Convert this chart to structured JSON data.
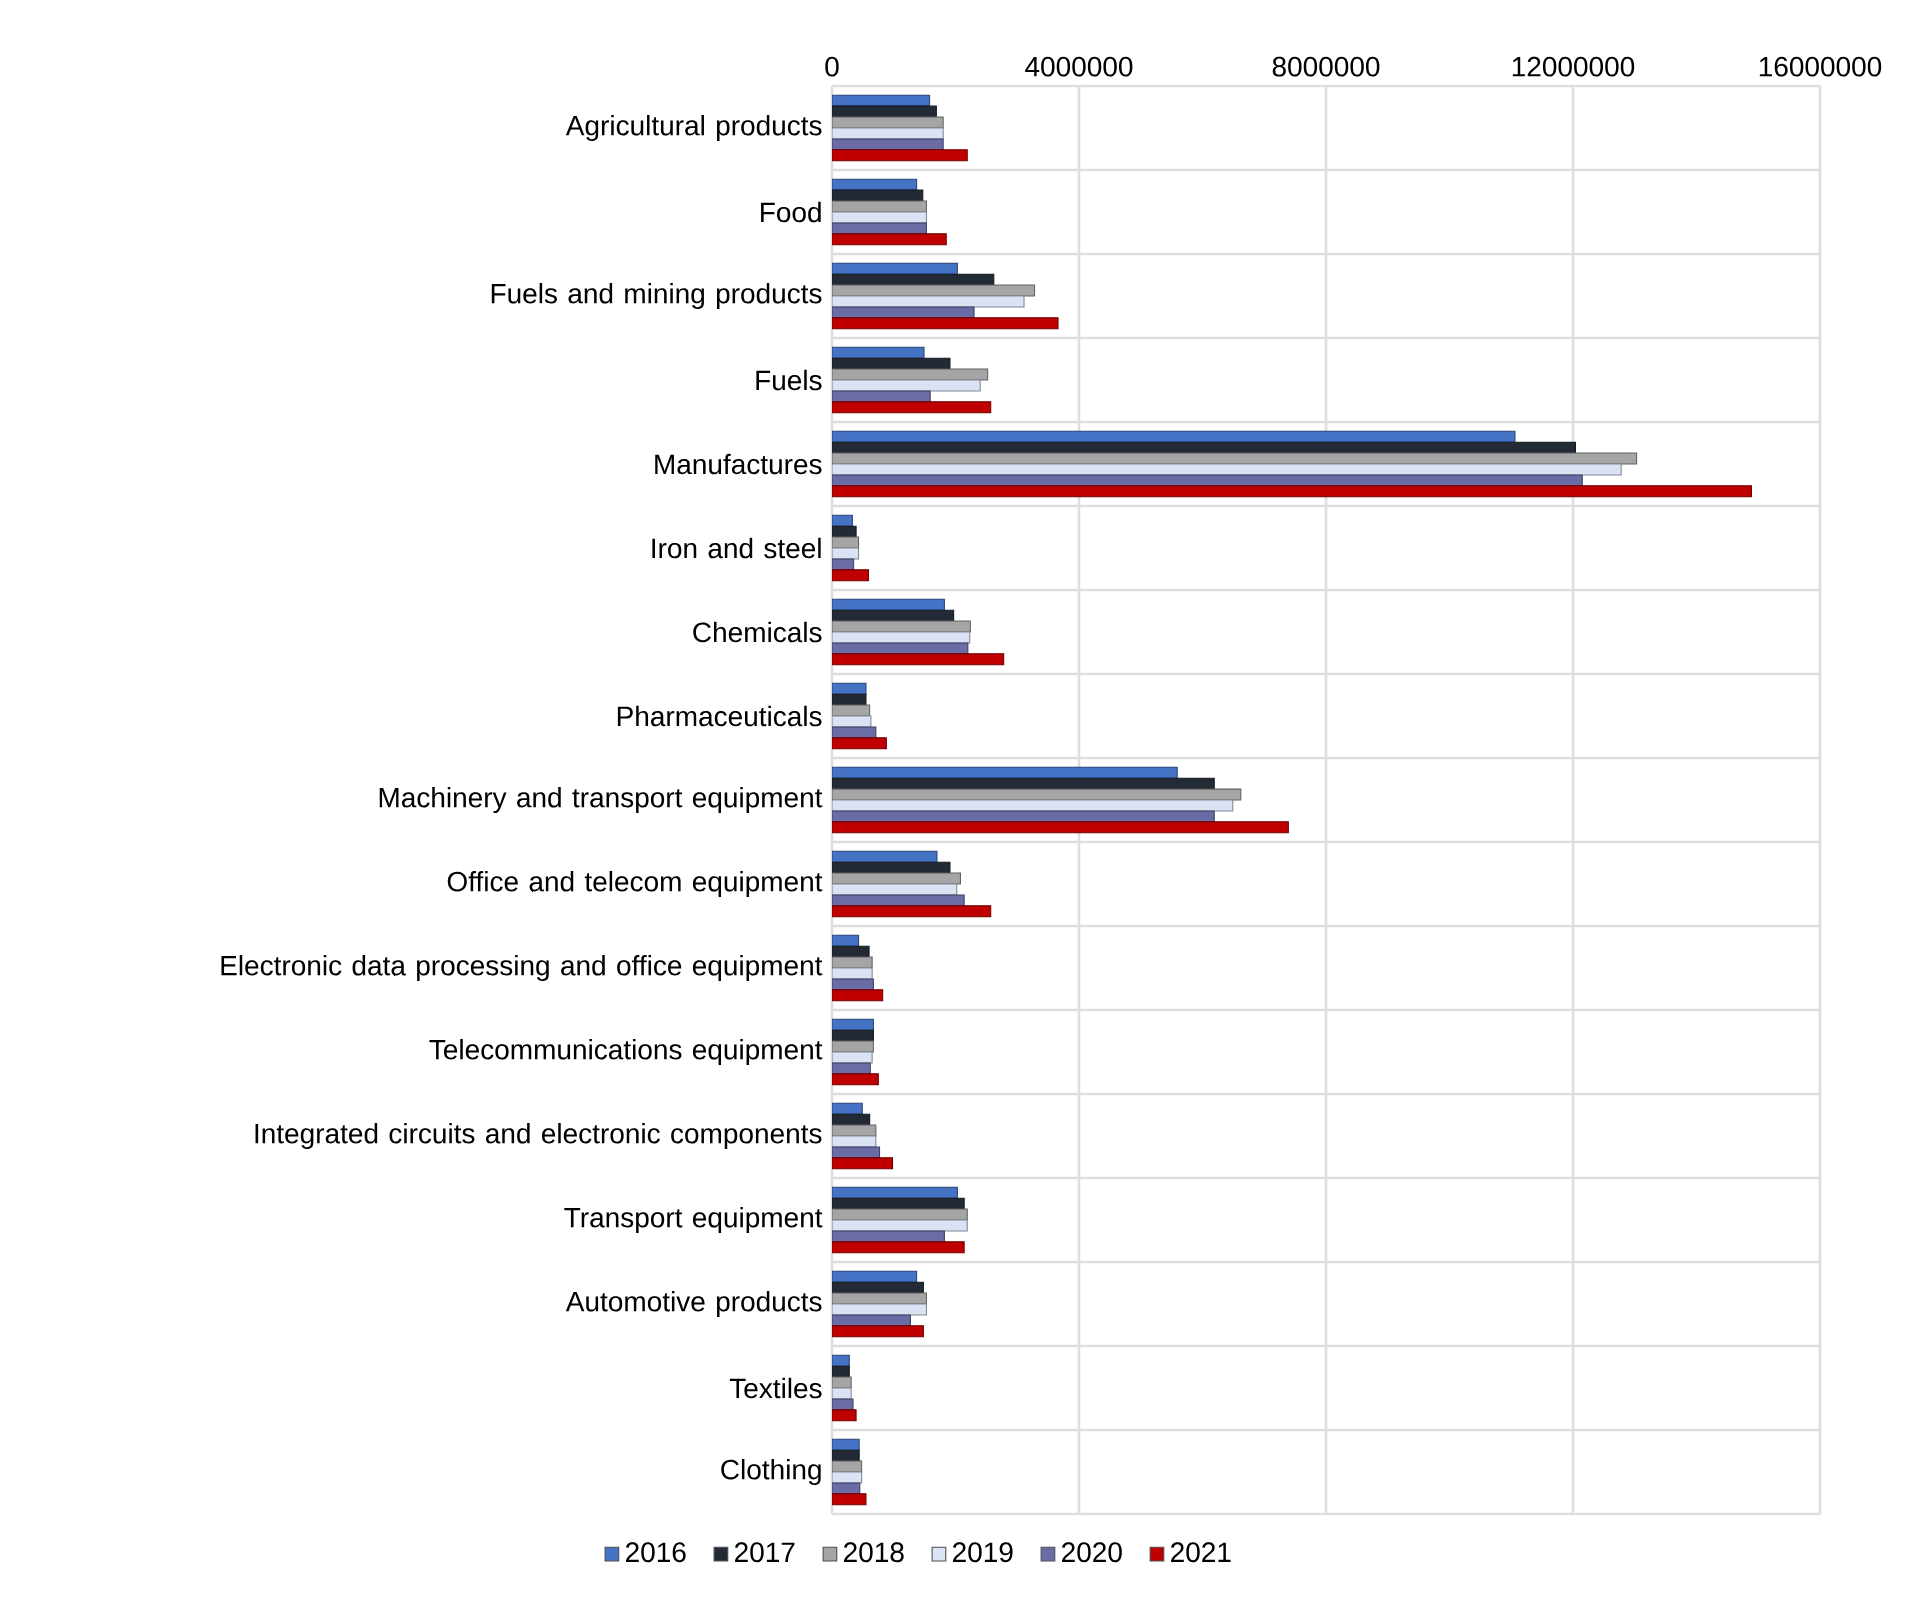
{
  "chart_data": {
    "type": "bar",
    "orientation": "horizontal",
    "categories": [
      "Agricultural products",
      "Food",
      "Fuels and mining products",
      "Fuels",
      "Manufactures",
      "Iron and steel",
      "Chemicals",
      "Pharmaceuticals",
      "Machinery and transport equipment",
      "Office and telecom equipment",
      "Electronic data processing and office equipment",
      "Telecommunications equipment",
      "Integrated circuits and electronic components",
      "Transport equipment",
      "Automotive products",
      "Textiles",
      "Clothing"
    ],
    "series": [
      {
        "name": "2016",
        "color": "#4472c4",
        "values": [
          1580000,
          1370000,
          2030000,
          1490000,
          11060000,
          330000,
          1820000,
          550000,
          5590000,
          1700000,
          430000,
          670000,
          490000,
          2030000,
          1370000,
          280000,
          440000
        ]
      },
      {
        "name": "2017",
        "color": "#222a35",
        "values": [
          1690000,
          1470000,
          2620000,
          1910000,
          12040000,
          390000,
          1970000,
          550000,
          6190000,
          1910000,
          600000,
          670000,
          610000,
          2140000,
          1480000,
          280000,
          440000
        ]
      },
      {
        "name": "2018",
        "color": "#a5a5a5",
        "values": [
          1800000,
          1530000,
          3280000,
          2520000,
          13030000,
          430000,
          2240000,
          610000,
          6620000,
          2080000,
          650000,
          670000,
          710000,
          2190000,
          1530000,
          310000,
          480000
        ]
      },
      {
        "name": "2019",
        "color": "#dae3f3",
        "values": [
          1800000,
          1530000,
          3110000,
          2400000,
          12780000,
          430000,
          2230000,
          630000,
          6490000,
          2020000,
          650000,
          650000,
          710000,
          2190000,
          1530000,
          310000,
          480000
        ]
      },
      {
        "name": "2020",
        "color": "#6b6ba6",
        "values": [
          1800000,
          1530000,
          2300000,
          1590000,
          12150000,
          350000,
          2200000,
          710000,
          6190000,
          2140000,
          670000,
          620000,
          770000,
          1820000,
          1270000,
          340000,
          450000
        ]
      },
      {
        "name": "2021",
        "color": "#c00000",
        "values": [
          2190000,
          1850000,
          3660000,
          2570000,
          14890000,
          590000,
          2780000,
          880000,
          7390000,
          2570000,
          820000,
          750000,
          980000,
          2140000,
          1480000,
          390000,
          550000
        ]
      }
    ],
    "xlim": [
      0,
      16000000
    ],
    "xticks": [
      0,
      4000000,
      8000000,
      12000000,
      16000000
    ],
    "grid": true,
    "legend": "bottom"
  }
}
